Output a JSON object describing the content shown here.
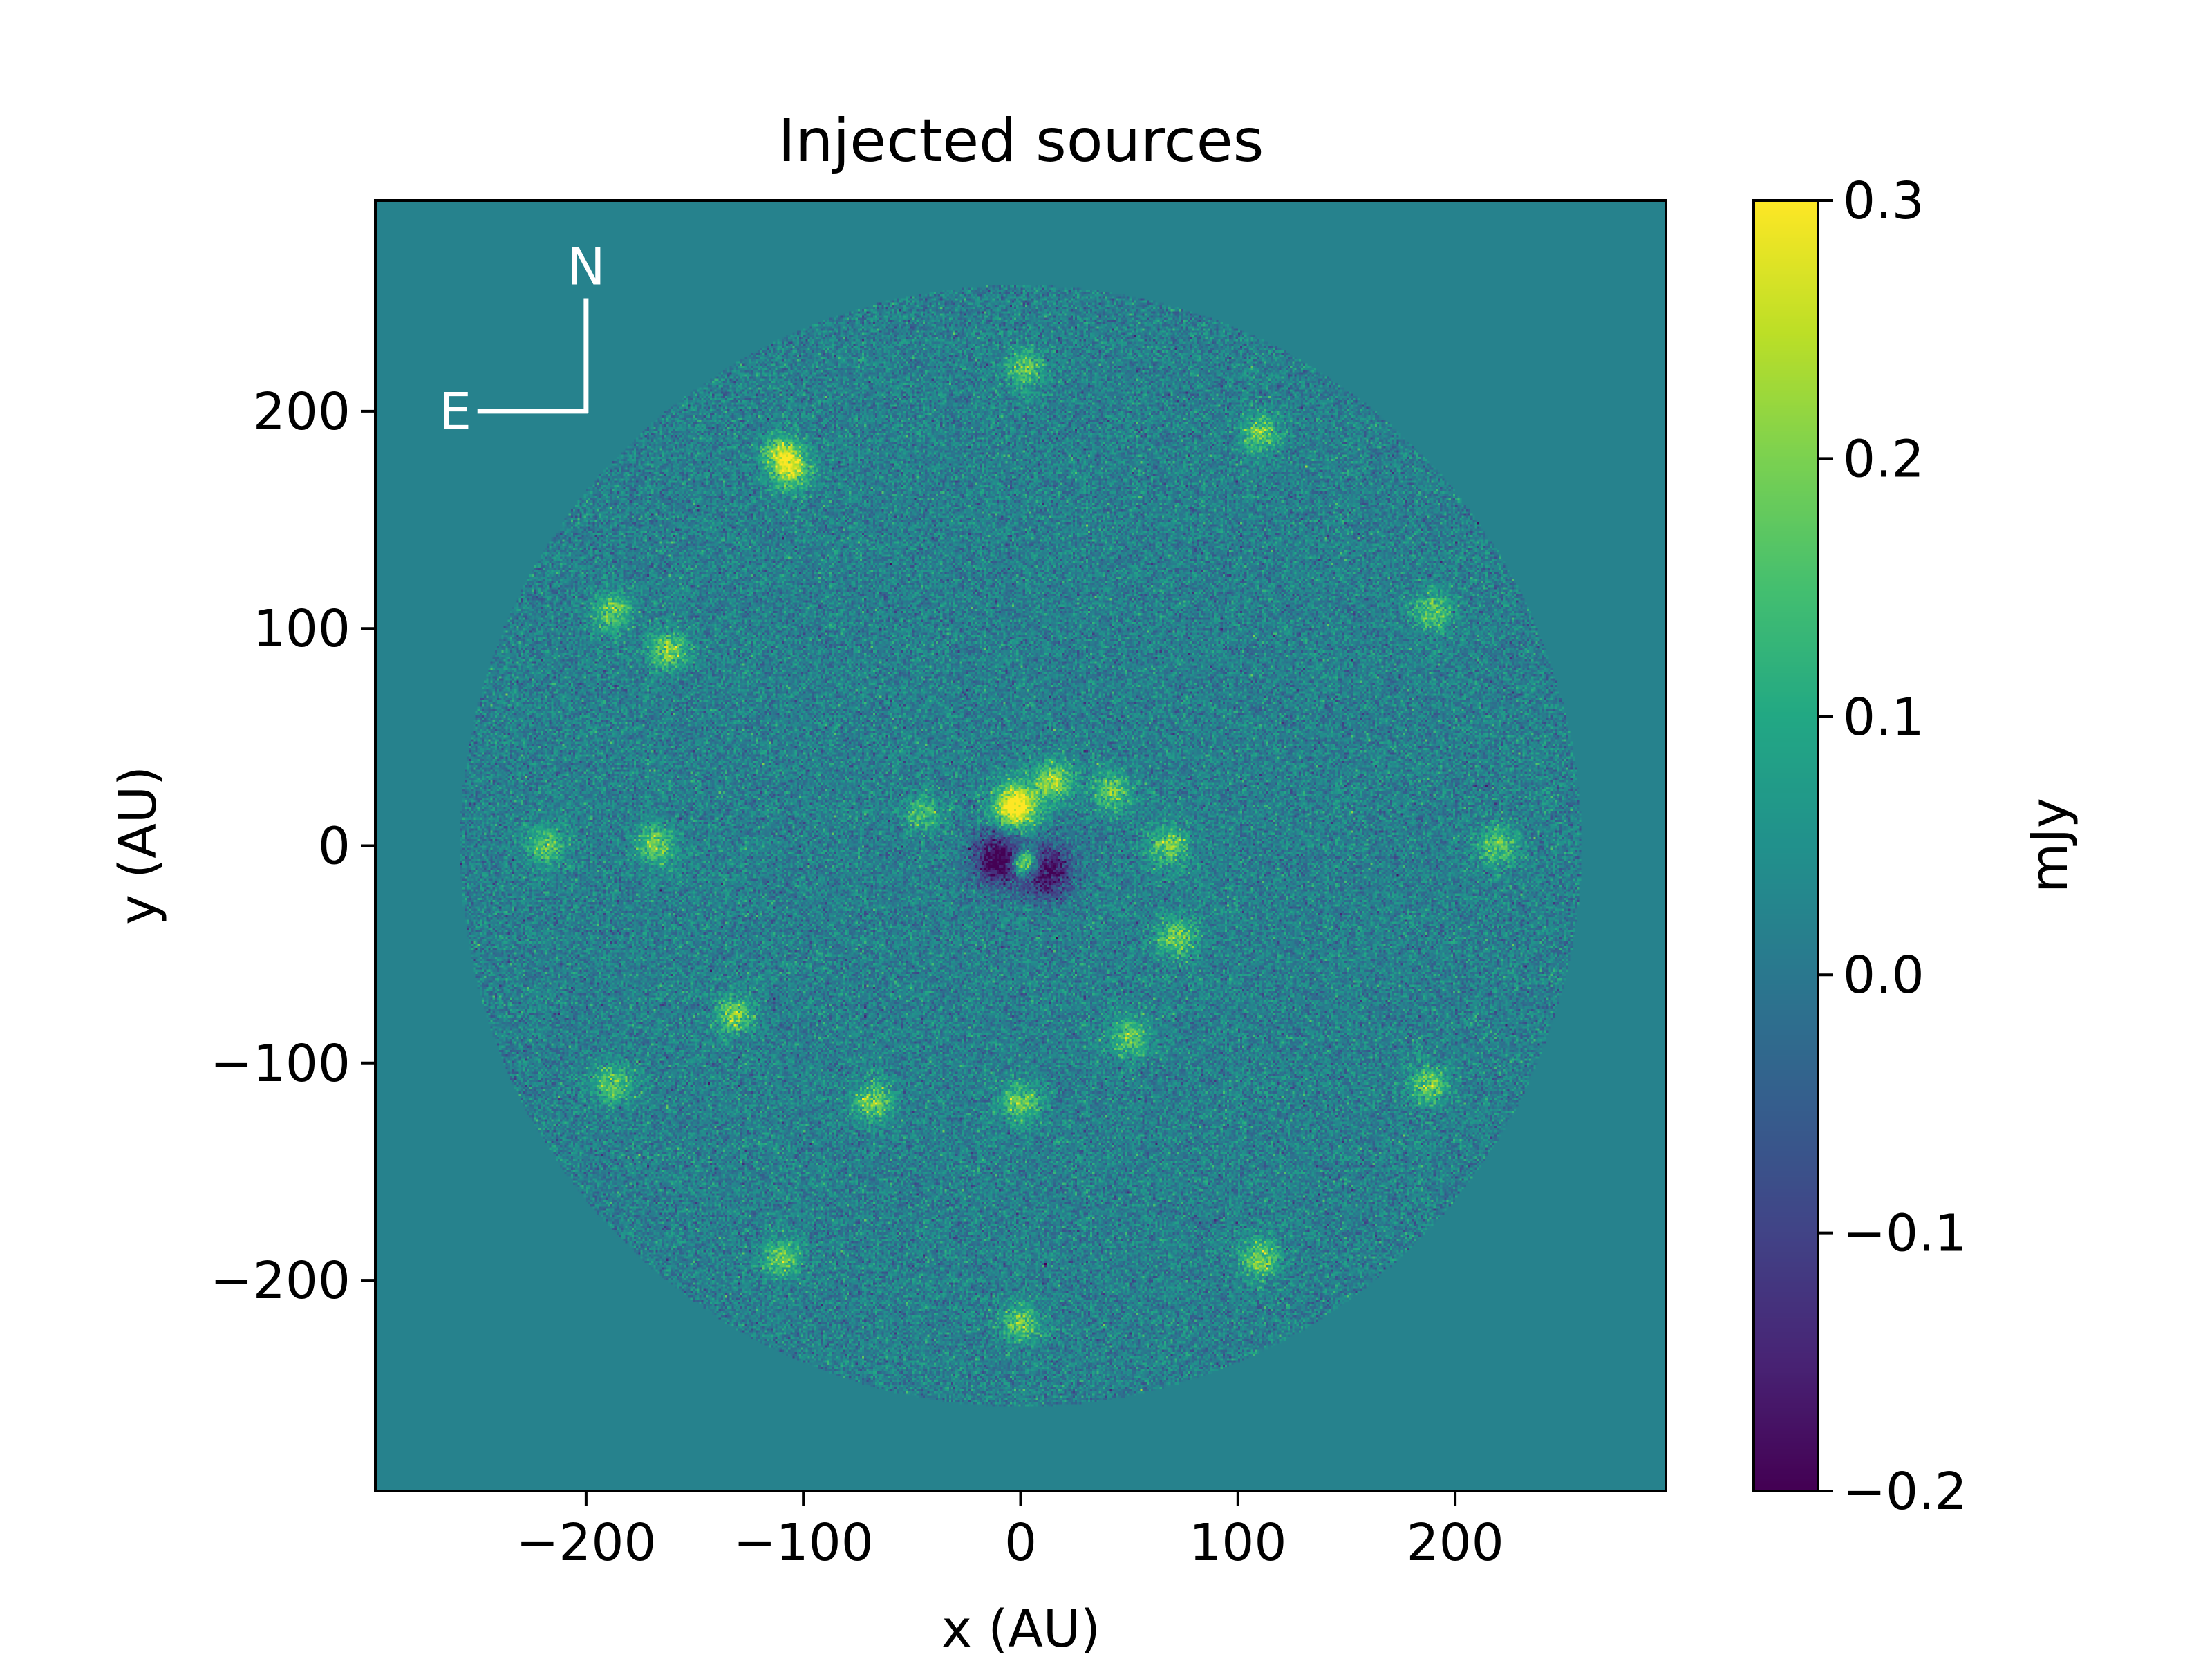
{
  "chart_data": {
    "type": "heatmap",
    "title": "Injected sources",
    "xlabel": "x (AU)",
    "ylabel": "y (AU)",
    "xlim": [
      -297,
      297
    ],
    "ylim": [
      -297,
      297
    ],
    "xticks": [
      -200,
      -100,
      0,
      100,
      200
    ],
    "yticks": [
      -200,
      -100,
      0,
      100,
      200
    ],
    "xtick_labels": [
      "−200",
      "−100",
      "0",
      "100",
      "200"
    ],
    "ytick_labels": [
      "−200",
      "−100",
      "0",
      "100",
      "200"
    ],
    "grid": false,
    "colormap": "viridis",
    "colorbar": {
      "label": "mJy",
      "vmin": -0.2,
      "vmax": 0.3,
      "ticks": [
        -0.2,
        -0.1,
        0.0,
        0.1,
        0.2,
        0.3
      ],
      "tick_labels": [
        "−0.2",
        "−0.1",
        "0.0",
        "0.1",
        "0.2",
        "0.3"
      ]
    },
    "background_value": 0.02,
    "field_radius": 258,
    "compass": {
      "north_label": "N",
      "east_label": "E"
    },
    "central_features": [
      {
        "x": -2,
        "y": 18,
        "peak": 0.35,
        "sigma": 7
      },
      {
        "x": 15,
        "y": 30,
        "peak": 0.22,
        "sigma": 6
      },
      {
        "x": 2,
        "y": -8,
        "peak": 0.35,
        "sigma": 4
      },
      {
        "x": -10,
        "y": -6,
        "peak": -0.25,
        "sigma": 8
      },
      {
        "x": 12,
        "y": -12,
        "peak": -0.22,
        "sigma": 8
      }
    ],
    "sources": [
      {
        "x": 2,
        "y": 220,
        "peak": 0.16
      },
      {
        "x": 110,
        "y": 190,
        "peak": 0.17
      },
      {
        "x": -110,
        "y": 180,
        "peak": 0.22
      },
      {
        "x": -105,
        "y": 172,
        "peak": 0.2
      },
      {
        "x": 190,
        "y": 108,
        "peak": 0.16
      },
      {
        "x": -188,
        "y": 108,
        "peak": 0.17
      },
      {
        "x": -162,
        "y": 90,
        "peak": 0.19
      },
      {
        "x": 220,
        "y": 0,
        "peak": 0.17
      },
      {
        "x": -218,
        "y": 0,
        "peak": 0.16
      },
      {
        "x": -168,
        "y": 0,
        "peak": 0.18
      },
      {
        "x": 68,
        "y": 0,
        "peak": 0.18
      },
      {
        "x": 42,
        "y": 25,
        "peak": 0.17
      },
      {
        "x": -45,
        "y": 15,
        "peak": 0.13
      },
      {
        "x": 72,
        "y": -42,
        "peak": 0.18
      },
      {
        "x": -132,
        "y": -78,
        "peak": 0.18
      },
      {
        "x": 50,
        "y": -88,
        "peak": 0.17
      },
      {
        "x": -188,
        "y": -110,
        "peak": 0.17
      },
      {
        "x": 188,
        "y": -110,
        "peak": 0.17
      },
      {
        "x": -68,
        "y": -118,
        "peak": 0.19
      },
      {
        "x": 0,
        "y": -118,
        "peak": 0.18
      },
      {
        "x": -110,
        "y": -190,
        "peak": 0.17
      },
      {
        "x": 110,
        "y": -190,
        "peak": 0.18
      },
      {
        "x": 0,
        "y": -220,
        "peak": 0.17
      }
    ]
  }
}
